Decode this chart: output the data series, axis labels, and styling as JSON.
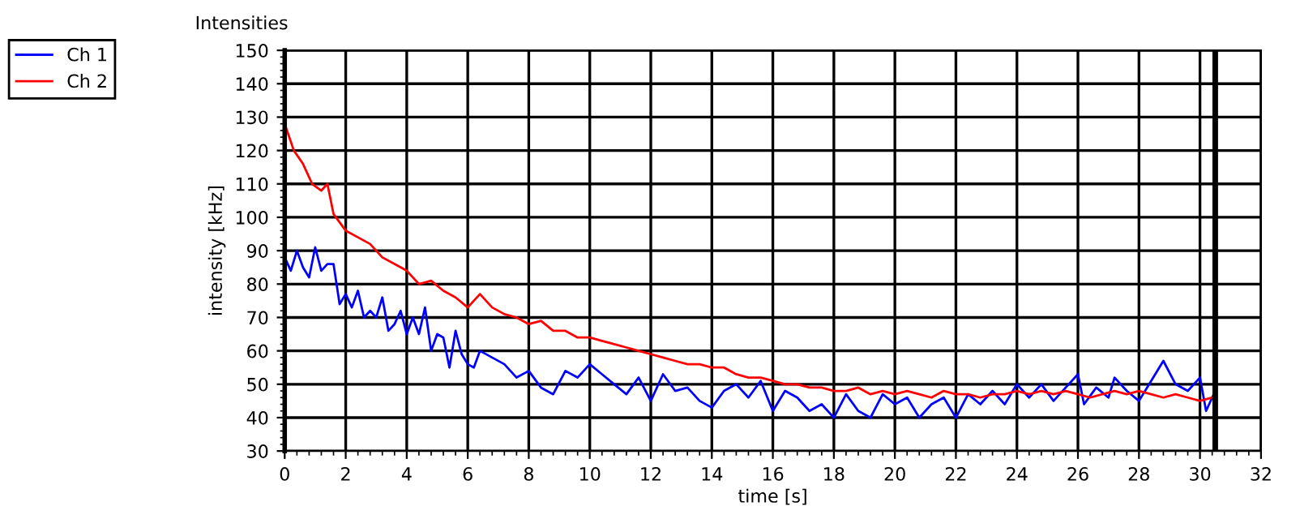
{
  "chart_data": {
    "type": "line",
    "title": "Intensities",
    "xlabel": "time [s]",
    "ylabel": "intensity [kHz]",
    "xlim": [
      0,
      32
    ],
    "xticks": [
      0,
      2,
      4,
      6,
      8,
      10,
      12,
      14,
      16,
      18,
      20,
      22,
      24,
      26,
      28,
      30,
      32
    ],
    "ylim": [
      30,
      150
    ],
    "yticks": [
      30,
      40,
      50,
      60,
      70,
      80,
      90,
      100,
      110,
      120,
      130,
      140,
      150
    ],
    "grid": true,
    "legend": "top left",
    "marker": "none",
    "line_style": "solid",
    "ref_lines": [
      {
        "axis": "x",
        "value": 30.5,
        "color": "#000000"
      }
    ],
    "series": [
      {
        "name": "Ch 1",
        "color": "#0000ff",
        "x": [
          0,
          0.2,
          0.4,
          0.6,
          0.8,
          1,
          1.2,
          1.4,
          1.6,
          1.8,
          2,
          2.2,
          2.4,
          2.6,
          2.8,
          3,
          3.2,
          3.4,
          3.6,
          3.8,
          4,
          4.2,
          4.4,
          4.6,
          4.8,
          5,
          5.2,
          5.4,
          5.6,
          5.8,
          6,
          6.2,
          6.4,
          6.8,
          7.2,
          7.6,
          8,
          8.4,
          8.8,
          9.2,
          9.6,
          10,
          10.4,
          10.8,
          11.2,
          11.6,
          12,
          12.4,
          12.8,
          13.2,
          13.6,
          14,
          14.4,
          14.8,
          15.2,
          15.6,
          16,
          16.4,
          16.8,
          17.2,
          17.6,
          18,
          18.4,
          18.8,
          19.2,
          19.6,
          20,
          20.4,
          20.8,
          21.2,
          21.6,
          22,
          22.4,
          22.8,
          23.2,
          23.6,
          24,
          24.4,
          24.8,
          25.2,
          25.6,
          26,
          26.2,
          26.6,
          27,
          27.2,
          27.6,
          28,
          28.4,
          28.8,
          29.2,
          29.6,
          30,
          30.2,
          30.5
        ],
        "values": [
          88,
          84,
          90,
          85,
          82,
          91,
          84,
          86,
          86,
          74,
          77,
          73,
          78,
          70,
          72,
          70,
          76,
          66,
          68,
          72,
          65,
          70,
          65,
          73,
          60,
          65,
          64,
          55,
          66,
          59,
          56,
          55,
          60,
          58,
          56,
          52,
          54,
          49,
          47,
          54,
          52,
          56,
          53,
          50,
          47,
          52,
          45,
          53,
          48,
          49,
          45,
          43,
          48,
          50,
          46,
          51,
          42,
          48,
          46,
          42,
          44,
          40,
          47,
          42,
          40,
          47,
          44,
          46,
          40,
          44,
          46,
          40,
          47,
          44,
          48,
          44,
          50,
          46,
          50,
          45,
          49,
          53,
          44,
          49,
          46,
          52,
          48,
          45,
          51,
          57,
          50,
          48,
          52,
          42,
          48
        ]
      },
      {
        "name": "Ch 2",
        "color": "#ff0000",
        "x": [
          0,
          0.3,
          0.6,
          0.9,
          1.2,
          1.4,
          1.6,
          2,
          2.4,
          2.8,
          3.2,
          3.6,
          4,
          4.4,
          4.8,
          5.2,
          5.6,
          6,
          6.4,
          6.8,
          7.2,
          7.6,
          8,
          8.4,
          8.8,
          9.2,
          9.6,
          10,
          10.4,
          10.8,
          11.2,
          11.6,
          12,
          12.4,
          12.8,
          13.2,
          13.6,
          14,
          14.4,
          14.8,
          15.2,
          15.6,
          16,
          16.4,
          16.8,
          17.2,
          17.6,
          18,
          18.4,
          18.8,
          19.2,
          19.6,
          20,
          20.4,
          20.8,
          21.2,
          21.6,
          22,
          22.4,
          22.8,
          23.2,
          23.6,
          24,
          24.4,
          24.8,
          25.2,
          25.6,
          26,
          26.4,
          26.8,
          27.2,
          27.6,
          28,
          28.4,
          28.8,
          29.2,
          29.6,
          30,
          30.4
        ],
        "values": [
          128,
          120,
          116,
          110,
          108,
          110,
          101,
          96,
          94,
          92,
          88,
          86,
          84,
          80,
          81,
          78,
          76,
          73,
          77,
          73,
          71,
          70,
          68,
          69,
          66,
          66,
          64,
          64,
          63,
          62,
          61,
          60,
          59,
          58,
          57,
          56,
          56,
          55,
          55,
          53,
          52,
          52,
          51,
          50,
          50,
          49,
          49,
          48,
          48,
          49,
          47,
          48,
          47,
          48,
          47,
          46,
          48,
          47,
          47,
          46,
          47,
          47,
          48,
          47,
          48,
          47,
          48,
          47,
          46,
          47,
          48,
          47,
          48,
          47,
          46,
          47,
          46,
          45,
          46
        ]
      }
    ]
  }
}
